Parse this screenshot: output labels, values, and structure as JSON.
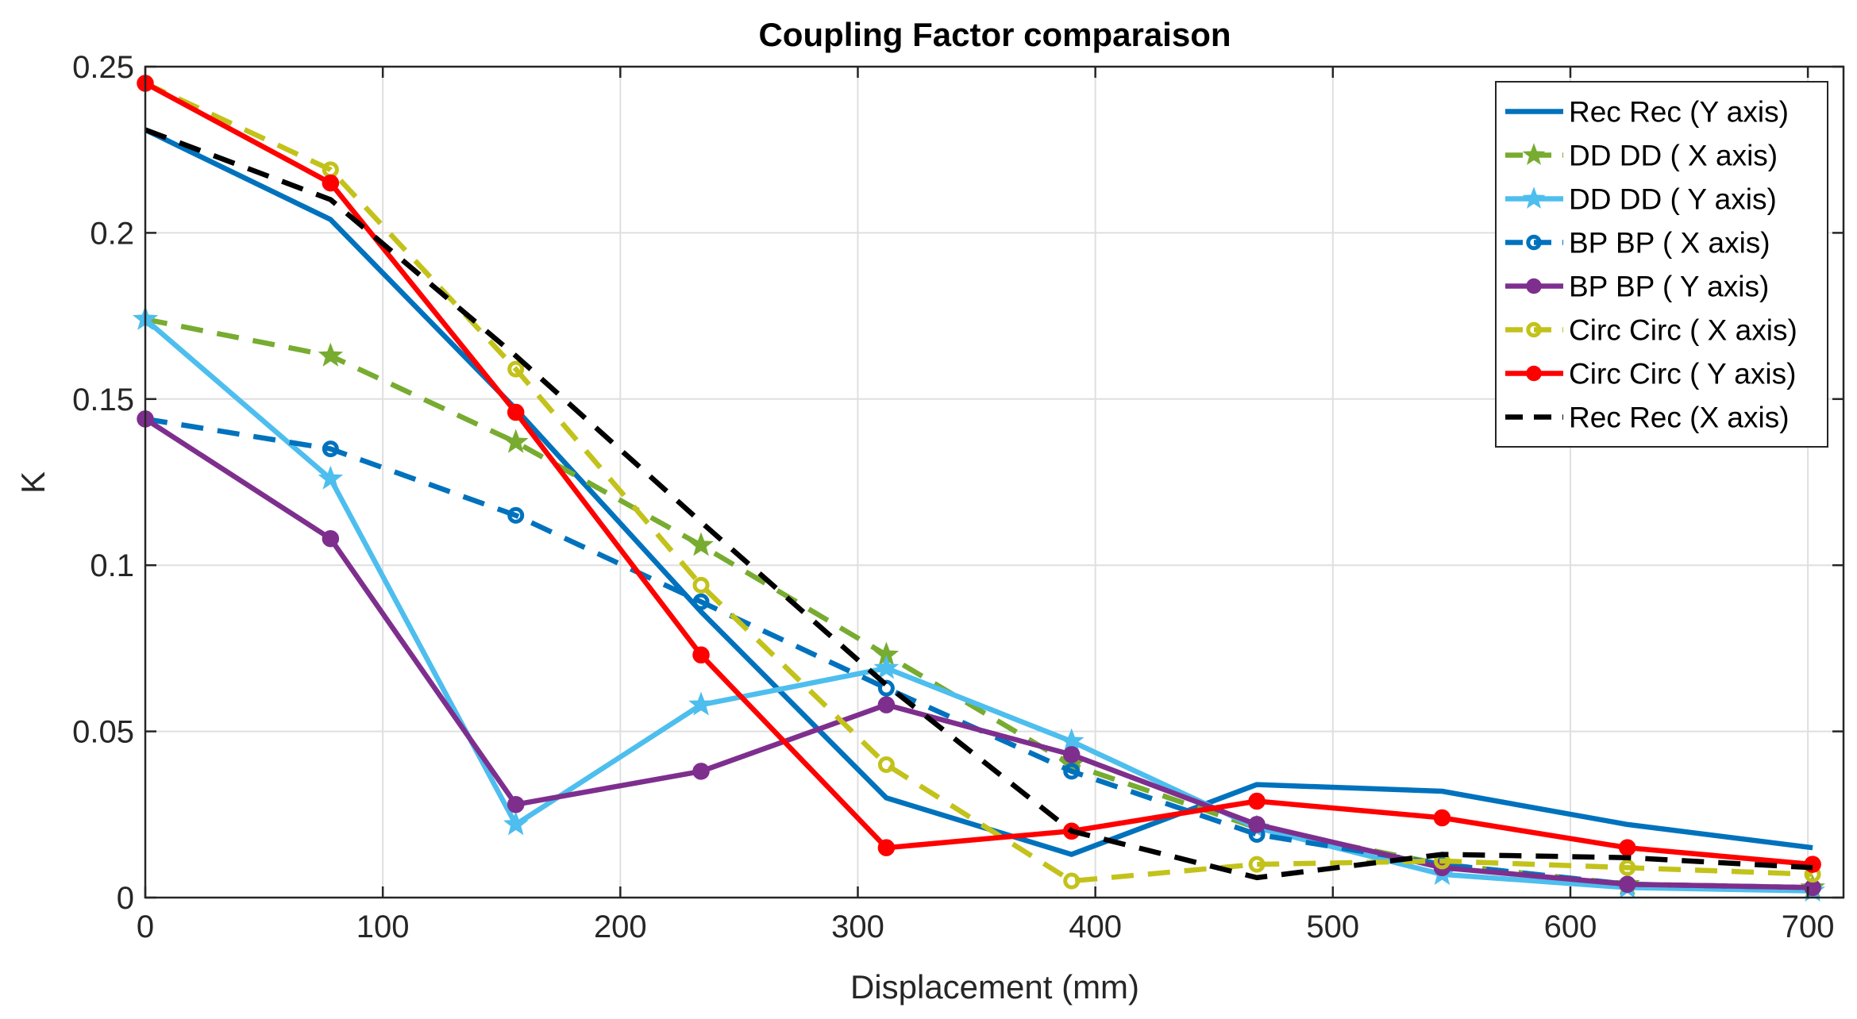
{
  "chart_data": {
    "type": "line",
    "title": "Coupling Factor comparaison",
    "xlabel": "Displacement (mm)",
    "ylabel": "K",
    "xlim": [
      0,
      715
    ],
    "ylim": [
      0,
      0.25
    ],
    "xticks": [
      0,
      100,
      200,
      300,
      400,
      500,
      600,
      700
    ],
    "xtick_labels": [
      "0",
      "100",
      "200",
      "300",
      "400",
      "500",
      "600",
      "700"
    ],
    "yticks": [
      0,
      0.05,
      0.1,
      0.15,
      0.2,
      0.25
    ],
    "ytick_labels": [
      "0",
      "0.05",
      "0.1",
      "0.15",
      "0.2",
      "0.25"
    ],
    "grid": true,
    "legend_position": "top-right",
    "x": [
      0,
      78,
      156,
      234,
      312,
      390,
      468,
      546,
      624,
      702
    ],
    "series": [
      {
        "name": "Rec Rec (Y axis)",
        "color": "#0072BD",
        "dash": "solid",
        "marker": "none",
        "values": [
          0.231,
          0.204,
          0.147,
          0.086,
          0.03,
          0.013,
          0.034,
          0.032,
          0.022,
          0.015
        ]
      },
      {
        "name": "DD DD ( X axis)",
        "color": "#77AC30",
        "dash": "dashed",
        "marker": "star",
        "values": [
          0.174,
          0.163,
          0.137,
          0.106,
          0.073,
          0.04,
          0.021,
          0.01,
          0.004,
          0.003
        ]
      },
      {
        "name": "DD DD ( Y axis)",
        "color": "#4DBEEE",
        "dash": "solid",
        "marker": "star",
        "values": [
          0.174,
          0.126,
          0.022,
          0.058,
          0.069,
          0.047,
          0.021,
          0.007,
          0.003,
          0.002
        ]
      },
      {
        "name": "BP BP ( X axis)",
        "color": "#0072BD",
        "dash": "dashed",
        "marker": "open-circle",
        "values": [
          0.144,
          0.135,
          0.115,
          0.089,
          0.063,
          0.038,
          0.019,
          0.01,
          0.004,
          0.003
        ]
      },
      {
        "name": "BP BP ( Y axis)",
        "color": "#7E2F8E",
        "dash": "solid",
        "marker": "filled-circle",
        "values": [
          0.144,
          0.108,
          0.028,
          0.038,
          0.058,
          0.043,
          0.022,
          0.009,
          0.004,
          0.003
        ]
      },
      {
        "name": "Circ Circ ( X axis)",
        "color": "#C2C21B",
        "dash": "dashed",
        "marker": "open-circle",
        "values": [
          0.245,
          0.219,
          0.159,
          0.094,
          0.04,
          0.005,
          0.01,
          0.011,
          0.009,
          0.007
        ]
      },
      {
        "name": "Circ Circ ( Y axis)",
        "color": "#FF0000",
        "dash": "solid",
        "marker": "filled-circle",
        "values": [
          0.245,
          0.215,
          0.146,
          0.073,
          0.015,
          0.02,
          0.029,
          0.024,
          0.015,
          0.01
        ]
      },
      {
        "name": "Rec Rec (X axis)",
        "color": "#000000",
        "dash": "dashed",
        "marker": "none",
        "values": [
          0.231,
          0.21,
          0.163,
          0.113,
          0.064,
          0.02,
          0.006,
          0.013,
          0.012,
          0.009
        ]
      }
    ]
  }
}
